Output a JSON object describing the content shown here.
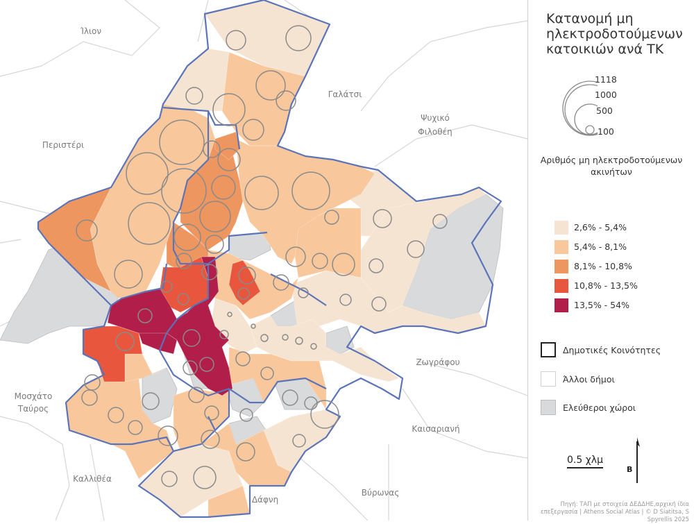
{
  "title": "Κατανομή μη ηλεκτροδοτούμενων κατοικιών ανά ΤΚ",
  "bubble_legend": {
    "values": [
      "1118",
      "1000",
      "500",
      "100"
    ]
  },
  "choropleth_legend": {
    "title": "Αριθμός μη ηλεκτροδοτούμενων ακινήτων",
    "classes": [
      {
        "label": "2,6% - 5,4%",
        "color": "#f6e4d3"
      },
      {
        "label": "5,4% - 8,1%",
        "color": "#f8c89c"
      },
      {
        "label": "8,1% - 10,8%",
        "color": "#ee965f"
      },
      {
        "label": "10,8% - 13,5%",
        "color": "#e8573d"
      },
      {
        "label": "13,5% - 54%",
        "color": "#b11e4a"
      }
    ]
  },
  "other_legend": [
    {
      "label": "Δημοτικές Κοινότητες",
      "color": "#ffffff",
      "border": "#222222"
    },
    {
      "label": "Άλλοι δήμοι",
      "color": "#ffffff",
      "border": "#d8d8d8"
    },
    {
      "label": "Ελεύθεροι χώροι",
      "color": "#d9dadc",
      "border": "#bdbdbd"
    }
  ],
  "map_labels": {
    "ilion": "Ίλιον",
    "galatsi": "Γαλάτσι",
    "peristeri": "Περιστέρι",
    "psychiko": "Ψυχικό",
    "filothei": "Φιλοθέη",
    "zografou": "Ζωγράφου",
    "moschato": "Μοσχάτο",
    "tavros": "Ταύρος",
    "kaisariani": "Καισαριανή",
    "kallithea": "Καλλιθέα",
    "vyronas": "Βύρωνας",
    "dafni": "Δάφνη"
  },
  "scale_bar": "0.5 χλμ",
  "north_arrow": "Β",
  "source": "Πηγή: ΤΑΠ με στοιχεία ΔΕΔΔΗΕ,αρχική ίδια επεξεργασία | Athens Social Atlas | © D Siatitsa, S Spyrellis 2025",
  "colors": {
    "community_border": "#5b73b8",
    "muni_border": "#d6d6d6",
    "free_space": "#d9dadc",
    "circle_stroke": "#8a8a8a"
  }
}
